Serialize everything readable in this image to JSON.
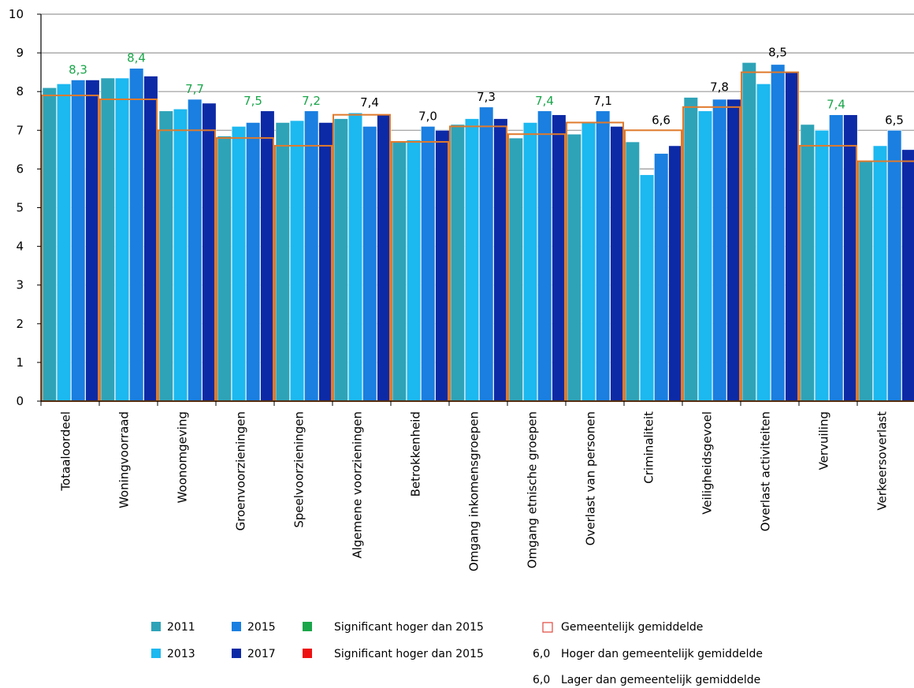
{
  "chart_data": {
    "type": "bar",
    "ylim": [
      0,
      10
    ],
    "yticks": [
      "0",
      "1",
      "2",
      "3",
      "4",
      "5",
      "6",
      "7",
      "8",
      "9",
      "10"
    ],
    "grid": true,
    "categories": [
      "Totaaloordeel",
      "Woningvoorraad",
      "Woonomgeving",
      "Groenvoorzieningen",
      "Speelvoorzieningen",
      "Algemene voorzieningen",
      "Betrokkenheid",
      "Omgang inkomensgroepen",
      "Omgang etnische groepen",
      "Overlast van personen",
      "Criminaliteit",
      "Veiligheidsgevoel",
      "Overlast activiteiten",
      "Vervuiling",
      "Verkeersoverlast"
    ],
    "series": [
      {
        "name": "2011",
        "color": "#2ea3b8",
        "values": [
          8.1,
          8.35,
          7.5,
          6.85,
          7.2,
          7.3,
          6.7,
          7.15,
          6.8,
          6.9,
          6.7,
          7.85,
          8.75,
          7.15,
          6.2
        ]
      },
      {
        "name": "2013",
        "color": "#1cb8f0",
        "values": [
          8.2,
          8.35,
          7.55,
          7.1,
          7.25,
          7.45,
          6.75,
          7.3,
          7.2,
          7.2,
          5.85,
          7.5,
          8.2,
          7.0,
          6.6
        ]
      },
      {
        "name": "2015",
        "color": "#1a7fe0",
        "values": [
          8.3,
          8.6,
          7.8,
          7.2,
          7.5,
          7.1,
          7.1,
          7.6,
          7.5,
          7.5,
          6.4,
          7.8,
          8.7,
          7.4,
          7.0
        ]
      },
      {
        "name": "2017",
        "color": "#0d2aa6",
        "values": [
          8.3,
          8.4,
          7.7,
          7.5,
          7.2,
          7.4,
          7.0,
          7.3,
          7.4,
          7.1,
          6.6,
          7.8,
          8.5,
          7.4,
          6.5
        ]
      }
    ],
    "gemeentelijk_gemiddelde": [
      7.9,
      7.8,
      7.0,
      6.8,
      6.6,
      7.4,
      6.7,
      7.1,
      6.9,
      7.2,
      7.0,
      7.6,
      8.5,
      6.6,
      6.2
    ],
    "data_labels": [
      "8,3",
      "8,4",
      "7,7",
      "7,5",
      "7,2",
      "7,4",
      "7,0",
      "7,3",
      "7,4",
      "7,1",
      "6,6",
      "7,8",
      "8,5",
      "7,4",
      "6,5"
    ],
    "data_label_colors": [
      "#1aa64a",
      "#1aa64a",
      "#1aa64a",
      "#1aa64a",
      "#1aa64a",
      "#000000",
      "#000000",
      "#000000",
      "#1aa64a",
      "#000000",
      "#000000",
      "#000000",
      "#000000",
      "#1aa64a",
      "#000000"
    ],
    "gridline_color": "#9a9a9a",
    "average_color": "#e07a2c"
  },
  "legend": {
    "items": [
      {
        "label": "2011",
        "color": "#2ea3b8",
        "kind": "square"
      },
      {
        "label": "2015",
        "color": "#1a7fe0",
        "kind": "square"
      },
      {
        "label": "Significant hoger dan 2015",
        "color": "#1aa64a",
        "kind": "square"
      },
      {
        "label": "Gemeentelijk gemiddelde",
        "color": "#e0483c",
        "kind": "outline"
      },
      {
        "label": "2013",
        "color": "#1cb8f0",
        "kind": "square"
      },
      {
        "label": "2017",
        "color": "#0d2aa6",
        "kind": "square"
      },
      {
        "label": "Significant hoger dan 2015",
        "color": "#ee1111",
        "kind": "square"
      },
      {
        "label": "Hoger dan gemeentelijk gemiddelde",
        "sample": "6,0",
        "color": "#1aa64a",
        "kind": "text"
      },
      {
        "label": "Lager dan gemeentelijk gemiddelde",
        "sample": "6,0",
        "color": "#ee1111",
        "kind": "text"
      }
    ]
  }
}
